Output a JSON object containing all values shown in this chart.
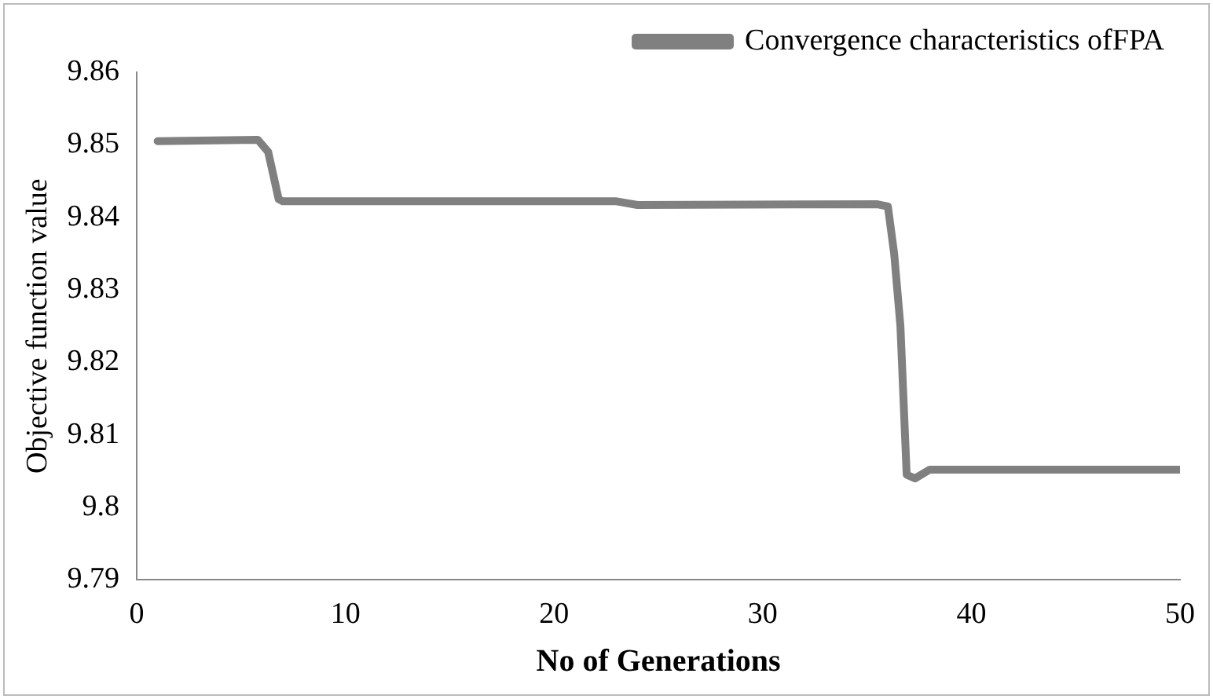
{
  "chart_data": {
    "type": "line",
    "xlabel": "No of Generations",
    "ylabel": "Objective function value",
    "x": [
      1,
      5.8,
      6.3,
      6.8,
      7,
      23,
      24,
      35.5,
      36,
      36.3,
      36.6,
      36.9,
      37.3,
      38,
      50
    ],
    "series": [
      {
        "name": "Convergence characteristics ofFPA",
        "color": "#808080",
        "values": [
          9.8505,
          9.8507,
          9.849,
          9.8425,
          9.8422,
          9.8422,
          9.8417,
          9.8418,
          9.8415,
          9.835,
          9.825,
          9.8045,
          9.804,
          9.8052,
          9.8052
        ]
      }
    ],
    "xlim": [
      0,
      50
    ],
    "xticks": [
      0,
      10,
      20,
      30,
      40,
      50
    ],
    "ylim": [
      9.79,
      9.86
    ],
    "yticks": [
      9.79,
      9.8,
      9.81,
      9.82,
      9.83,
      9.84,
      9.85,
      9.86
    ],
    "grid": false,
    "legend": "top right",
    "marker": "none",
    "line_style": "solid"
  }
}
